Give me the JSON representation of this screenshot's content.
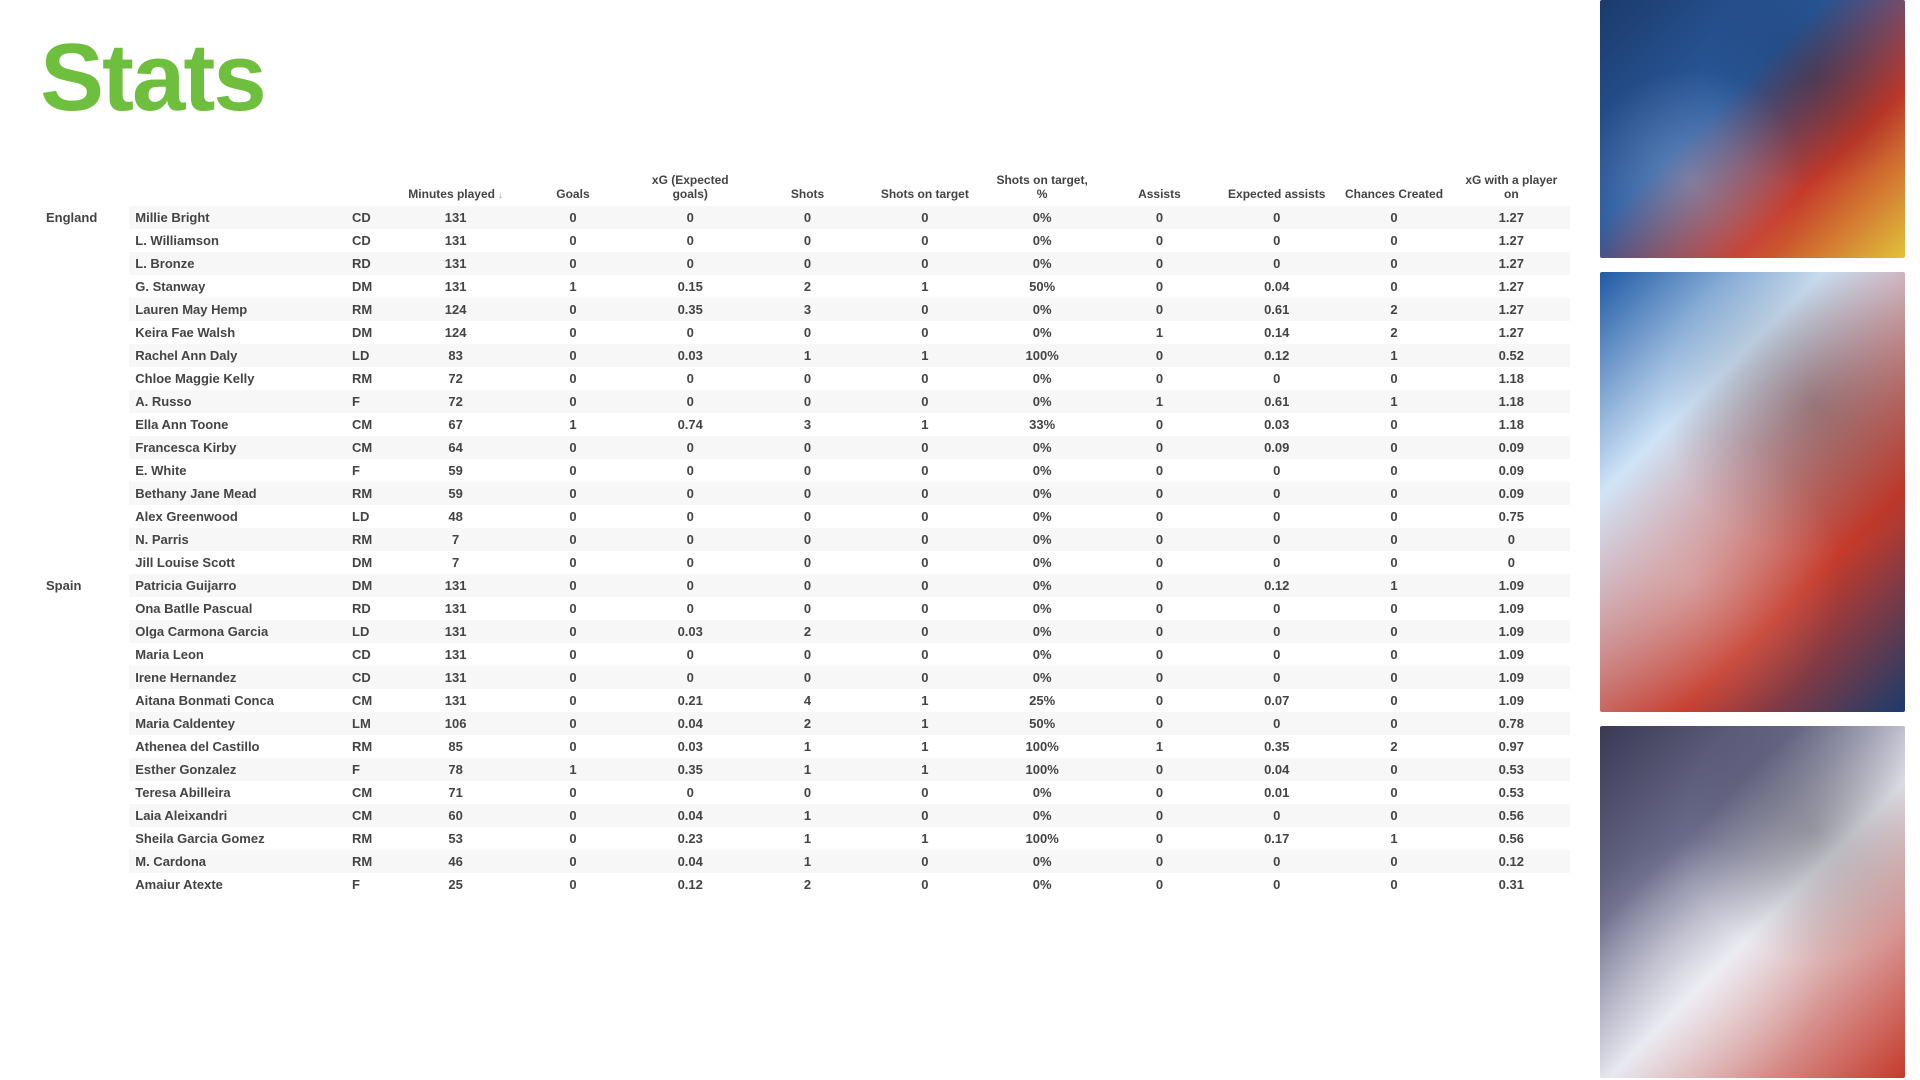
{
  "title": "Stats",
  "title_color": "#6fbf3e",
  "sorted_column_index": 0,
  "columns": [
    "Minutes played",
    "Goals",
    "xG (Expected goals)",
    "Shots",
    "Shots on target",
    "Shots on target, %",
    "Assists",
    "Expected assists",
    "Chances Created",
    "xG with a player on"
  ],
  "groups": [
    {
      "team": "England",
      "rows": [
        {
          "name": "Millie Bright",
          "pos": "CD",
          "v": [
            "131",
            "0",
            "0",
            "0",
            "0",
            "0%",
            "0",
            "0",
            "0",
            "1.27"
          ]
        },
        {
          "name": "L. Williamson",
          "pos": "CD",
          "v": [
            "131",
            "0",
            "0",
            "0",
            "0",
            "0%",
            "0",
            "0",
            "0",
            "1.27"
          ]
        },
        {
          "name": "L. Bronze",
          "pos": "RD",
          "v": [
            "131",
            "0",
            "0",
            "0",
            "0",
            "0%",
            "0",
            "0",
            "0",
            "1.27"
          ]
        },
        {
          "name": "G. Stanway",
          "pos": "DM",
          "v": [
            "131",
            "1",
            "0.15",
            "2",
            "1",
            "50%",
            "0",
            "0.04",
            "0",
            "1.27"
          ]
        },
        {
          "name": "Lauren May Hemp",
          "pos": "RM",
          "v": [
            "124",
            "0",
            "0.35",
            "3",
            "0",
            "0%",
            "0",
            "0.61",
            "2",
            "1.27"
          ]
        },
        {
          "name": "Keira Fae Walsh",
          "pos": "DM",
          "v": [
            "124",
            "0",
            "0",
            "0",
            "0",
            "0%",
            "1",
            "0.14",
            "2",
            "1.27"
          ]
        },
        {
          "name": "Rachel Ann Daly",
          "pos": "LD",
          "v": [
            "83",
            "0",
            "0.03",
            "1",
            "1",
            "100%",
            "0",
            "0.12",
            "1",
            "0.52"
          ]
        },
        {
          "name": "Chloe Maggie Kelly",
          "pos": "RM",
          "v": [
            "72",
            "0",
            "0",
            "0",
            "0",
            "0%",
            "0",
            "0",
            "0",
            "1.18"
          ]
        },
        {
          "name": "A. Russo",
          "pos": "F",
          "v": [
            "72",
            "0",
            "0",
            "0",
            "0",
            "0%",
            "1",
            "0.61",
            "1",
            "1.18"
          ]
        },
        {
          "name": "Ella Ann Toone",
          "pos": "CM",
          "v": [
            "67",
            "1",
            "0.74",
            "3",
            "1",
            "33%",
            "0",
            "0.03",
            "0",
            "1.18"
          ]
        },
        {
          "name": "Francesca Kirby",
          "pos": "CM",
          "v": [
            "64",
            "0",
            "0",
            "0",
            "0",
            "0%",
            "0",
            "0.09",
            "0",
            "0.09"
          ]
        },
        {
          "name": "E. White",
          "pos": "F",
          "v": [
            "59",
            "0",
            "0",
            "0",
            "0",
            "0%",
            "0",
            "0",
            "0",
            "0.09"
          ]
        },
        {
          "name": "Bethany Jane Mead",
          "pos": "RM",
          "v": [
            "59",
            "0",
            "0",
            "0",
            "0",
            "0%",
            "0",
            "0",
            "0",
            "0.09"
          ]
        },
        {
          "name": "Alex Greenwood",
          "pos": "LD",
          "v": [
            "48",
            "0",
            "0",
            "0",
            "0",
            "0%",
            "0",
            "0",
            "0",
            "0.75"
          ]
        },
        {
          "name": "N. Parris",
          "pos": "RM",
          "v": [
            "7",
            "0",
            "0",
            "0",
            "0",
            "0%",
            "0",
            "0",
            "0",
            "0"
          ]
        },
        {
          "name": "Jill Louise Scott",
          "pos": "DM",
          "v": [
            "7",
            "0",
            "0",
            "0",
            "0",
            "0%",
            "0",
            "0",
            "0",
            "0"
          ]
        }
      ]
    },
    {
      "team": "Spain",
      "rows": [
        {
          "name": "Patricia Guijarro",
          "pos": "DM",
          "v": [
            "131",
            "0",
            "0",
            "0",
            "0",
            "0%",
            "0",
            "0.12",
            "1",
            "1.09"
          ]
        },
        {
          "name": "Ona Batlle Pascual",
          "pos": "RD",
          "v": [
            "131",
            "0",
            "0",
            "0",
            "0",
            "0%",
            "0",
            "0",
            "0",
            "1.09"
          ]
        },
        {
          "name": "Olga Carmona Garcia",
          "pos": "LD",
          "v": [
            "131",
            "0",
            "0.03",
            "2",
            "0",
            "0%",
            "0",
            "0",
            "0",
            "1.09"
          ]
        },
        {
          "name": "Maria Leon",
          "pos": "CD",
          "v": [
            "131",
            "0",
            "0",
            "0",
            "0",
            "0%",
            "0",
            "0",
            "0",
            "1.09"
          ]
        },
        {
          "name": "Irene Hernandez",
          "pos": "CD",
          "v": [
            "131",
            "0",
            "0",
            "0",
            "0",
            "0%",
            "0",
            "0",
            "0",
            "1.09"
          ]
        },
        {
          "name": "Aitana Bonmati Conca",
          "pos": "CM",
          "v": [
            "131",
            "0",
            "0.21",
            "4",
            "1",
            "25%",
            "0",
            "0.07",
            "0",
            "1.09"
          ]
        },
        {
          "name": "Maria Caldentey",
          "pos": "LM",
          "v": [
            "106",
            "0",
            "0.04",
            "2",
            "1",
            "50%",
            "0",
            "0",
            "0",
            "0.78"
          ]
        },
        {
          "name": "Athenea del Castillo",
          "pos": "RM",
          "v": [
            "85",
            "0",
            "0.03",
            "1",
            "1",
            "100%",
            "1",
            "0.35",
            "2",
            "0.97"
          ]
        },
        {
          "name": "Esther Gonzalez",
          "pos": "F",
          "v": [
            "78",
            "1",
            "0.35",
            "1",
            "1",
            "100%",
            "0",
            "0.04",
            "0",
            "0.53"
          ]
        },
        {
          "name": "Teresa Abilleira",
          "pos": "CM",
          "v": [
            "71",
            "0",
            "0",
            "0",
            "0",
            "0%",
            "0",
            "0.01",
            "0",
            "0.53"
          ]
        },
        {
          "name": "Laia Aleixandri",
          "pos": "CM",
          "v": [
            "60",
            "0",
            "0.04",
            "1",
            "0",
            "0%",
            "0",
            "0",
            "0",
            "0.56"
          ]
        },
        {
          "name": "Sheila Garcia Gomez",
          "pos": "RM",
          "v": [
            "53",
            "0",
            "0.23",
            "1",
            "1",
            "100%",
            "0",
            "0.17",
            "1",
            "0.56"
          ]
        },
        {
          "name": "M. Cardona",
          "pos": "RM",
          "v": [
            "46",
            "0",
            "0.04",
            "1",
            "0",
            "0%",
            "0",
            "0",
            "0",
            "0.12"
          ]
        },
        {
          "name": "Amaiur Atexte",
          "pos": "F",
          "v": [
            "25",
            "0",
            "0.12",
            "2",
            "0",
            "0%",
            "0",
            "0",
            "0",
            "0.31"
          ]
        }
      ]
    }
  ]
}
